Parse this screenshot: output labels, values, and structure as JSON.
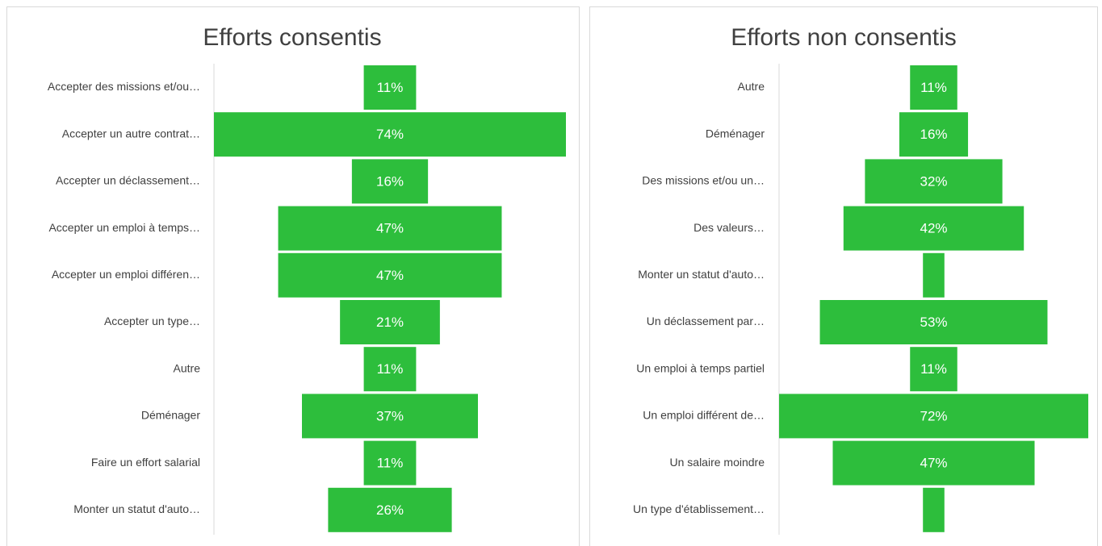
{
  "chart_data": [
    {
      "type": "funnel",
      "title": "Efforts consentis",
      "color": "#2dbe3c",
      "categories": [
        "Accepter des missions et/ou…",
        "Accepter un autre contrat…",
        "Accepter un déclassement…",
        "Accepter un emploi à temps…",
        "Accepter un emploi différen…",
        "Accepter un type…",
        "Autre",
        "Déménager",
        "Faire un effort salarial",
        "Monter un statut d'auto…"
      ],
      "values": [
        11,
        74,
        16,
        47,
        47,
        21,
        11,
        37,
        11,
        26
      ],
      "value_labels": [
        "11%",
        "74%",
        "16%",
        "47%",
        "47%",
        "21%",
        "11%",
        "37%",
        "11%",
        "26%"
      ]
    },
    {
      "type": "funnel",
      "title": "Efforts non consentis",
      "color": "#2dbe3c",
      "categories": [
        "Autre",
        "Déménager",
        "Des missions et/ou un…",
        "Des valeurs…",
        "Monter un statut d'auto…",
        "Un déclassement par…",
        "Un emploi à temps partiel",
        "Un emploi différent de…",
        "Un salaire moindre",
        "Un type d'établissement…"
      ],
      "values": [
        11,
        16,
        32,
        42,
        5,
        53,
        11,
        72,
        47,
        5
      ],
      "value_labels": [
        "11%",
        "16%",
        "32%",
        "42%",
        null,
        "53%",
        "11%",
        "72%",
        "47%",
        null
      ]
    }
  ]
}
